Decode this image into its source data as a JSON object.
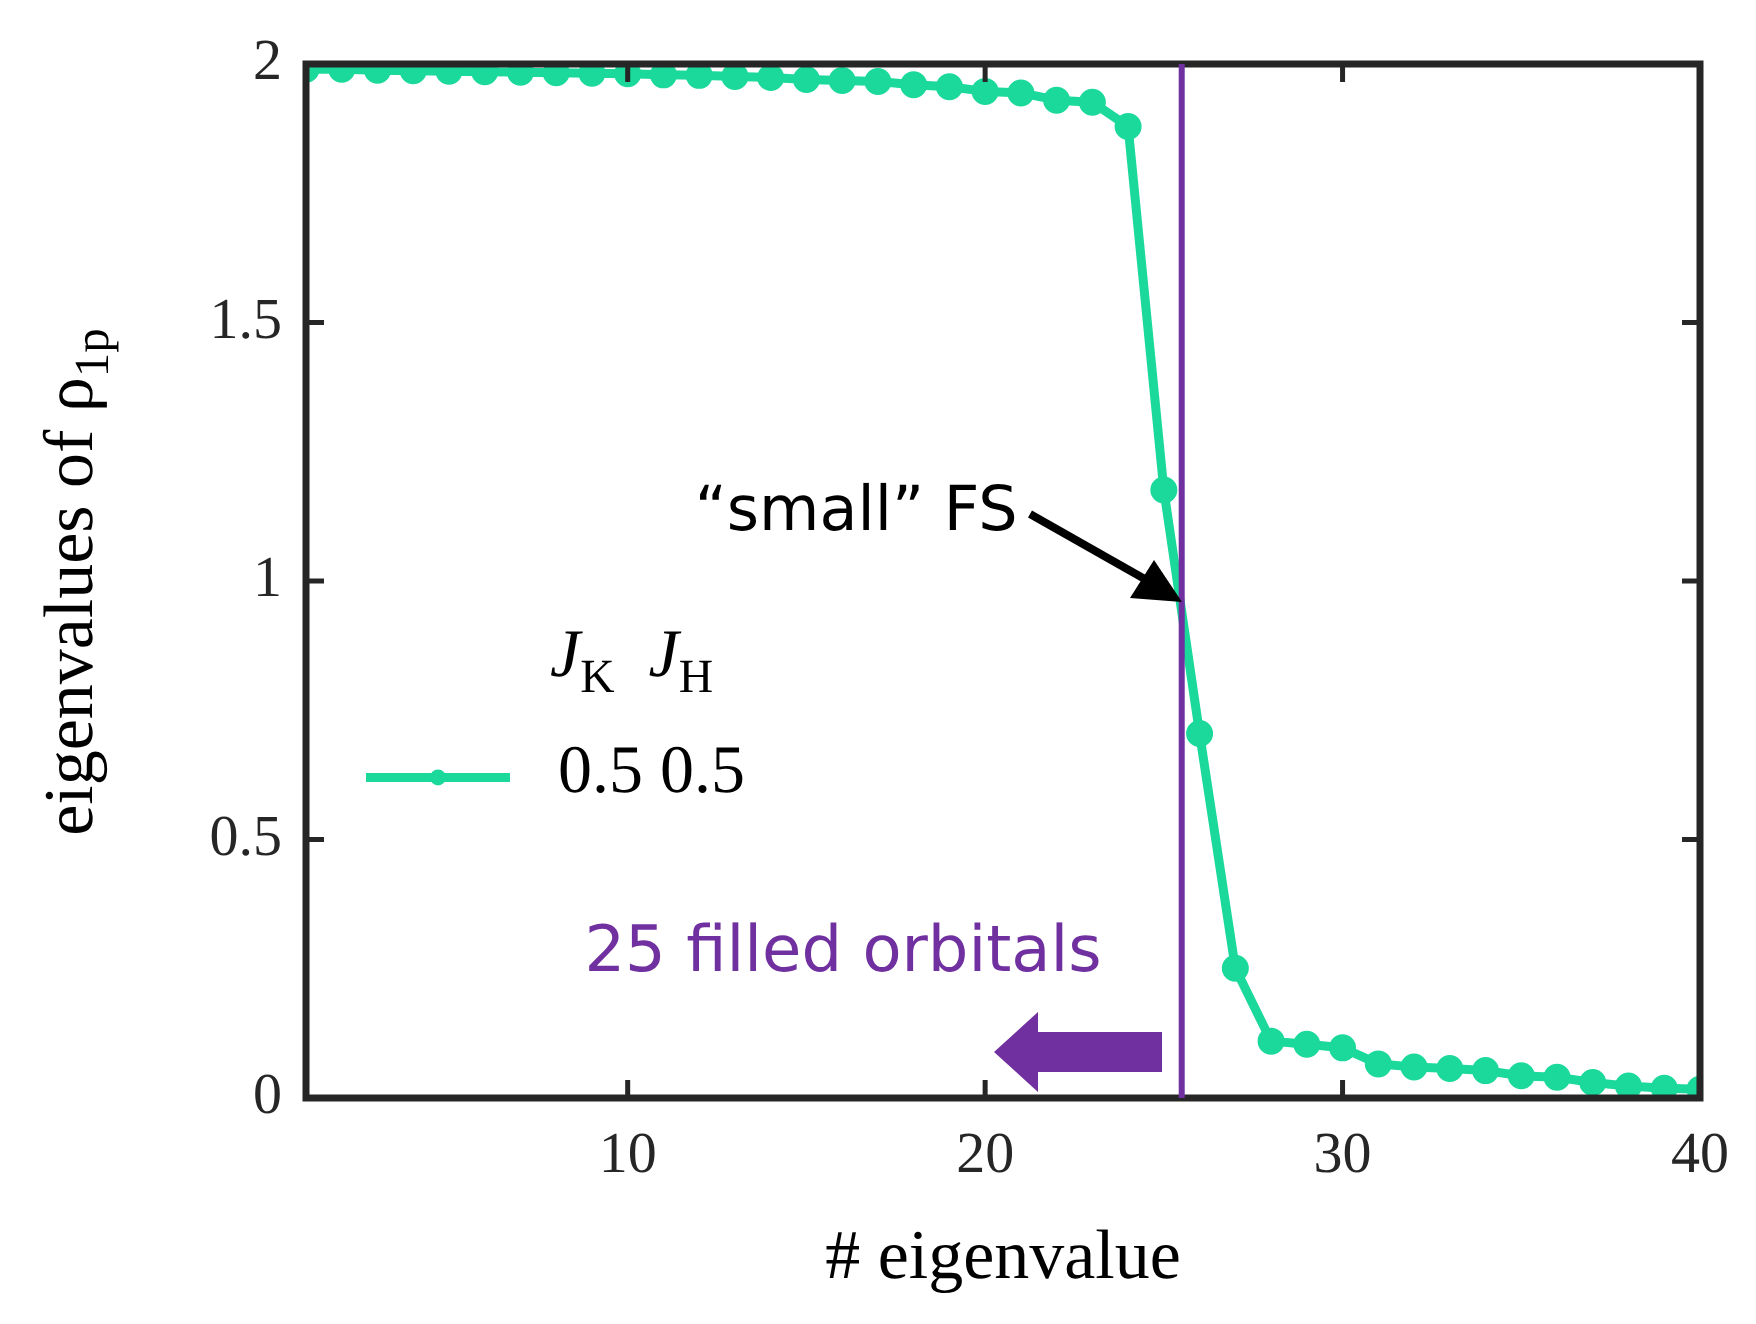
{
  "chart_data": {
    "type": "line",
    "xlabel": "# eigenvalue",
    "ylabel": "eigenvalues of ρ$_{1p}$",
    "legend_title": "J$_{K}$  J$_{H}$",
    "legend": "left",
    "marker": "circle",
    "line_style": "solid",
    "grid": false,
    "xlim": [
      1,
      40
    ],
    "xticks": [
      10,
      20,
      30,
      40
    ],
    "ylim": [
      0,
      2
    ],
    "yticks": [
      0,
      0.5,
      1,
      1.5,
      2
    ],
    "x": [
      1,
      2,
      3,
      4,
      5,
      6,
      7,
      8,
      9,
      10,
      11,
      12,
      13,
      14,
      15,
      16,
      17,
      18,
      19,
      20,
      21,
      22,
      23,
      24,
      25,
      26,
      27,
      28,
      29,
      30,
      31,
      32,
      33,
      34,
      35,
      36,
      37,
      38,
      39,
      40
    ],
    "series": [
      {
        "name": "0.5 0.5",
        "color": "#1ad99b",
        "values": [
          1.99,
          1.99,
          1.988,
          1.987,
          1.986,
          1.985,
          1.984,
          1.983,
          1.982,
          1.981,
          1.979,
          1.978,
          1.976,
          1.974,
          1.97,
          1.968,
          1.966,
          1.96,
          1.956,
          1.947,
          1.944,
          1.93,
          1.926,
          1.879,
          1.176,
          0.705,
          0.251,
          0.11,
          0.104,
          0.097,
          0.066,
          0.06,
          0.057,
          0.053,
          0.043,
          0.04,
          0.03,
          0.023,
          0.019,
          0.017
        ]
      }
    ],
    "ref_lines": [
      {
        "axis": "x",
        "value": 25.5,
        "label": "25 filled orbitals",
        "color": "#7030a0"
      }
    ],
    "annotations": [
      {
        "text": "“small” FS",
        "x": 25.5,
        "y": 0.96
      }
    ]
  }
}
